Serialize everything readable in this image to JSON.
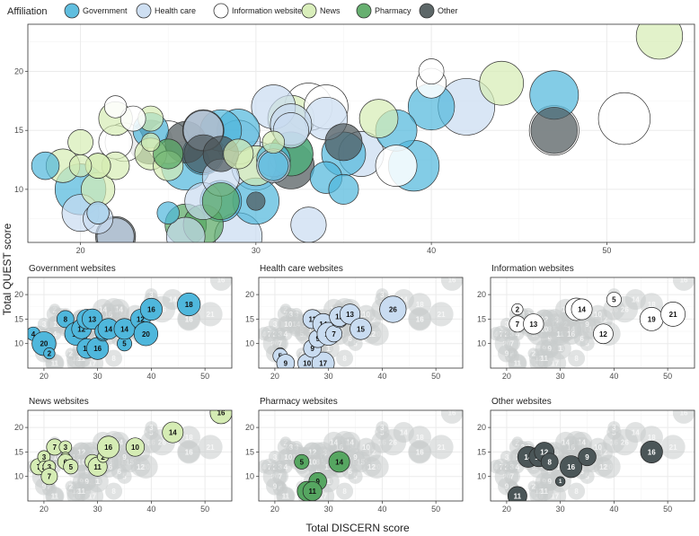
{
  "chart_data": {
    "type": "scatter",
    "title": "",
    "xlabel": "Total DISCERN score",
    "ylabel": "Total QUEST score",
    "legend": {
      "title": "Affiliation",
      "placement": "top",
      "items": [
        {
          "name": "Government",
          "color": "#4fb7dc"
        },
        {
          "name": "Health care",
          "color": "#c9dcf1"
        },
        {
          "name": "Information website",
          "color": "#ffffff"
        },
        {
          "name": "News",
          "color": "#d5ecb4"
        },
        {
          "name": "Pharmacy",
          "color": "#56a661"
        },
        {
          "name": "Other",
          "color": "#4b5658"
        }
      ]
    },
    "main_panel": {
      "xlim": [
        17,
        55
      ],
      "ylim": [
        5.5,
        24
      ],
      "xticks": [
        20,
        30,
        40,
        50
      ],
      "yticks": [
        10,
        15,
        20
      ]
    },
    "small_panels": {
      "xlim": [
        17,
        55
      ],
      "ylim": [
        5,
        23.5
      ],
      "xticks": [
        20,
        30,
        40,
        50
      ],
      "yticks": [
        10,
        15,
        20
      ]
    },
    "panels": [
      {
        "title": "Government websites",
        "group": "Government",
        "points": [
          {
            "x": 18,
            "y": 12,
            "n": 4
          },
          {
            "x": 20,
            "y": 10,
            "n": 20
          },
          {
            "x": 21,
            "y": 8,
            "n": 2
          },
          {
            "x": 24,
            "y": 15,
            "n": 8
          },
          {
            "x": 26,
            "y": 12,
            "n": 18
          },
          {
            "x": 27,
            "y": 13,
            "n": 12
          },
          {
            "x": 28,
            "y": 15,
            "n": 12
          },
          {
            "x": 29,
            "y": 15,
            "n": 13
          },
          {
            "x": 28,
            "y": 9,
            "n": 12
          },
          {
            "x": 30,
            "y": 9,
            "n": 16
          },
          {
            "x": 31,
            "y": 12,
            "n": 5
          },
          {
            "x": 31,
            "y": 12.5,
            "n": 7
          },
          {
            "x": 32,
            "y": 13,
            "n": 14
          },
          {
            "x": 35,
            "y": 10,
            "n": 5
          },
          {
            "x": 35,
            "y": 13,
            "n": 14
          },
          {
            "x": 38,
            "y": 15,
            "n": 12
          },
          {
            "x": 39,
            "y": 12,
            "n": 20
          },
          {
            "x": 40,
            "y": 17,
            "n": 16
          },
          {
            "x": 47,
            "y": 18,
            "n": 18
          }
        ]
      },
      {
        "title": "Health care websites",
        "group": "Health care",
        "points": [
          {
            "x": 21,
            "y": 8,
            "n": 2
          },
          {
            "x": 21,
            "y": 7.5,
            "n": 5
          },
          {
            "x": 22,
            "y": 6,
            "n": 9
          },
          {
            "x": 26,
            "y": 6,
            "n": 10
          },
          {
            "x": 29,
            "y": 6,
            "n": 17
          },
          {
            "x": 27,
            "y": 9,
            "n": 9
          },
          {
            "x": 28,
            "y": 11,
            "n": 9
          },
          {
            "x": 27,
            "y": 15,
            "n": 11
          },
          {
            "x": 29,
            "y": 14,
            "n": 14
          },
          {
            "x": 30,
            "y": 12,
            "n": 18
          },
          {
            "x": 31,
            "y": 12,
            "n": 7
          },
          {
            "x": 32,
            "y": 15,
            "n": 8
          },
          {
            "x": 32,
            "y": 15.5,
            "n": 12
          },
          {
            "x": 34,
            "y": 16,
            "n": 13
          },
          {
            "x": 36,
            "y": 13,
            "n": 15
          },
          {
            "x": 42,
            "y": 17,
            "n": 26
          }
        ]
      },
      {
        "title": "Information websites",
        "group": "Information website",
        "points": [
          {
            "x": 22,
            "y": 17,
            "n": 2
          },
          {
            "x": 22,
            "y": 14,
            "n": 7
          },
          {
            "x": 25,
            "y": 14,
            "n": 13
          },
          {
            "x": 33,
            "y": 17,
            "n": 17
          },
          {
            "x": 34,
            "y": 17,
            "n": 14
          },
          {
            "x": 38,
            "y": 12,
            "n": 12
          },
          {
            "x": 40,
            "y": 19,
            "n": 5
          },
          {
            "x": 47,
            "y": 15,
            "n": 19
          },
          {
            "x": 51,
            "y": 16,
            "n": 21
          }
        ]
      },
      {
        "title": "News websites",
        "group": "News",
        "points": [
          {
            "x": 19,
            "y": 12,
            "n": 7
          },
          {
            "x": 20,
            "y": 14,
            "n": 3
          },
          {
            "x": 20,
            "y": 12,
            "n": 2
          },
          {
            "x": 21,
            "y": 12,
            "n": 3
          },
          {
            "x": 21,
            "y": 12,
            "n": 3
          },
          {
            "x": 21,
            "y": 10,
            "n": 7
          },
          {
            "x": 22,
            "y": 16,
            "n": 7
          },
          {
            "x": 24,
            "y": 16,
            "n": 3
          },
          {
            "x": 24,
            "y": 14,
            "n": 1
          },
          {
            "x": 24,
            "y": 13,
            "n": 6
          },
          {
            "x": 25,
            "y": 12,
            "n": 5
          },
          {
            "x": 29,
            "y": 13,
            "n": 5
          },
          {
            "x": 30,
            "y": 12,
            "n": 11
          },
          {
            "x": 31,
            "y": 14,
            "n": 2
          },
          {
            "x": 32,
            "y": 16,
            "n": 16
          },
          {
            "x": 37,
            "y": 16,
            "n": 10
          },
          {
            "x": 44,
            "y": 19,
            "n": 14
          },
          {
            "x": 53,
            "y": 23,
            "n": 16
          }
        ]
      },
      {
        "title": "Pharmacy websites",
        "group": "Pharmacy",
        "points": [
          {
            "x": 25,
            "y": 13,
            "n": 5
          },
          {
            "x": 32,
            "y": 13,
            "n": 14
          },
          {
            "x": 28,
            "y": 9,
            "n": 9
          },
          {
            "x": 26,
            "y": 7,
            "n": 12
          },
          {
            "x": 27,
            "y": 7,
            "n": 11
          }
        ]
      },
      {
        "title": "Other websites",
        "group": "Other",
        "points": [
          {
            "x": 22,
            "y": 6,
            "n": 11
          },
          {
            "x": 24,
            "y": 14,
            "n": 14
          },
          {
            "x": 26,
            "y": 14,
            "n": 12
          },
          {
            "x": 27,
            "y": 15,
            "n": 12
          },
          {
            "x": 28,
            "y": 13,
            "n": 8
          },
          {
            "x": 30,
            "y": 9,
            "n": 1
          },
          {
            "x": 32,
            "y": 12,
            "n": 16
          },
          {
            "x": 35,
            "y": 14,
            "n": 9
          },
          {
            "x": 47,
            "y": 15,
            "n": 16
          }
        ]
      }
    ],
    "extra_main_points": [
      {
        "x": 20,
        "y": 8,
        "n": 9,
        "group": "Health care"
      },
      {
        "x": 40,
        "y": 20,
        "n": 3,
        "group": "Information website"
      },
      {
        "x": 23,
        "y": 16,
        "n": 3,
        "group": "Information website"
      },
      {
        "x": 22.5,
        "y": 14,
        "n": 10,
        "group": "Information website"
      },
      {
        "x": 31,
        "y": 17,
        "n": 14,
        "group": "Health care"
      },
      {
        "x": 25,
        "y": 8,
        "n": 2,
        "group": "Government"
      },
      {
        "x": 34,
        "y": 11,
        "n": 6,
        "group": "Government"
      },
      {
        "x": 33,
        "y": 7,
        "n": 8,
        "group": "Health care"
      },
      {
        "x": 27,
        "y": 13,
        "n": 10,
        "group": "Other"
      },
      {
        "x": 22,
        "y": 12,
        "n": 4,
        "group": "News"
      }
    ]
  }
}
